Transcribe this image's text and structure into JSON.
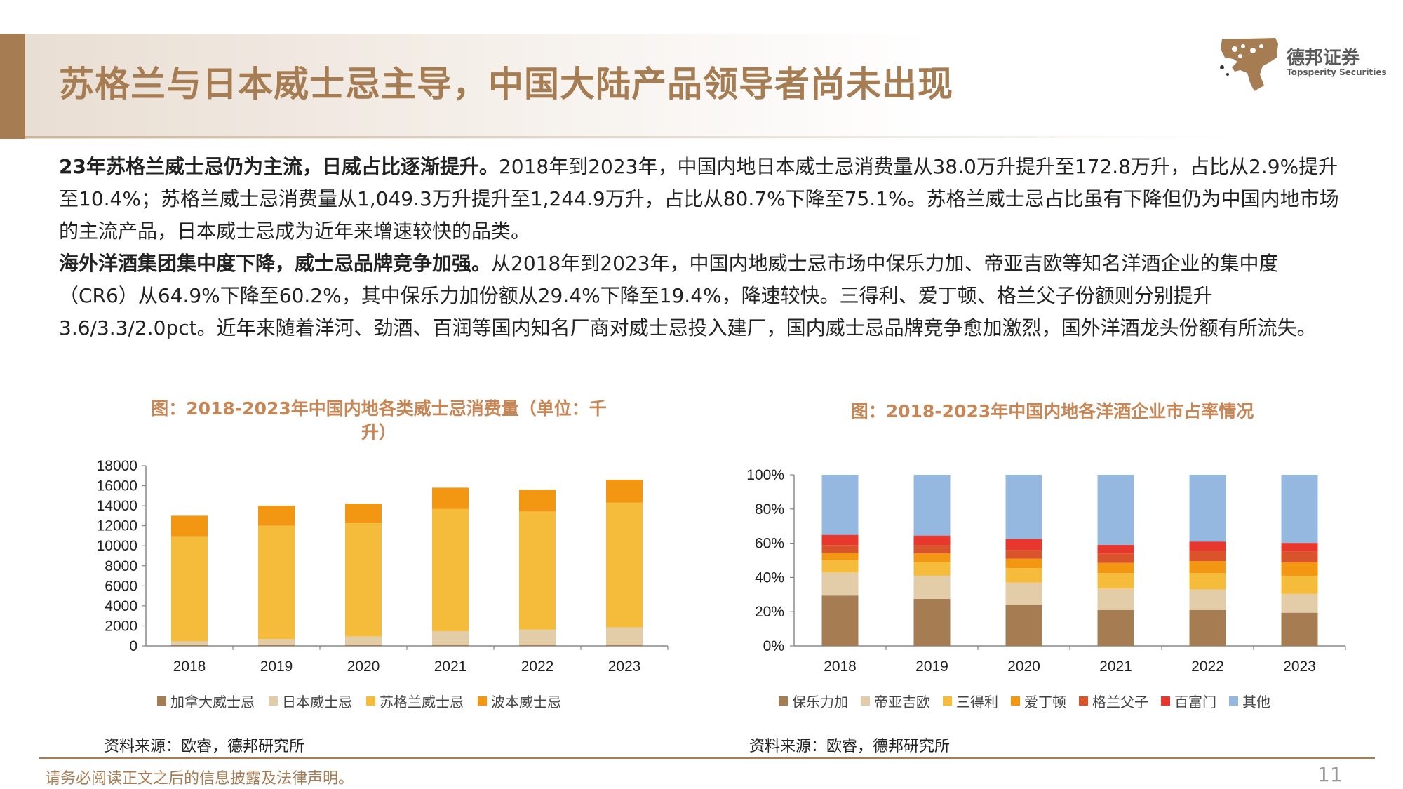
{
  "header": {
    "title": "苏格兰与日本威士忌主导，中国大陆产品领导者尚未出现",
    "logo_cn": "德邦证券",
    "logo_en": "Topsperity Securities"
  },
  "body": {
    "p1_bold": "23年苏格兰威士忌仍为主流，日威占比逐渐提升。",
    "p1_text": "2018年到2023年，中国内地日本威士忌消费量从38.0万升提升至172.8万升，占比从2.9%提升至10.4%；苏格兰威士忌消费量从1,049.3万升提升至1,244.9万升，占比从80.7%下降至75.1%。苏格兰威士忌占比虽有下降但仍为中国内地市场的主流产品，日本威士忌成为近年来增速较快的品类。",
    "p2_bold": "海外洋酒集团集中度下降，威士忌品牌竞争加强。",
    "p2_text": "从2018年到2023年，中国内地威士忌市场中保乐力加、帝亚吉欧等知名洋酒企业的集中度（CR6）从64.9%下降至60.2%，其中保乐力加份额从29.4%下降至19.4%，降速较快。三得利、爱丁顿、格兰父子份额则分别提升3.6/3.3/2.0pct。近年来随着洋河、劲酒、百润等国内知名厂商对威士忌投入建厂，国内威士忌品牌竞争愈加激烈，国外洋酒龙头份额有所流失。"
  },
  "chart_data": [
    {
      "type": "bar",
      "stacked": true,
      "title": "图：2018-2023年中国内地各类威士忌消费量（单位：千升）",
      "categories": [
        "2018",
        "2019",
        "2020",
        "2021",
        "2022",
        "2023"
      ],
      "ylim": [
        0,
        18000
      ],
      "yticks": [
        "0",
        "2000",
        "4000",
        "6000",
        "8000",
        "10000",
        "12000",
        "14000",
        "16000",
        "18000"
      ],
      "series": [
        {
          "name": "加拿大威士忌",
          "color": "#a67c52",
          "values": [
            80,
            100,
            100,
            120,
            120,
            120
          ]
        },
        {
          "name": "日本威士忌",
          "color": "#e3cda8",
          "values": [
            380,
            600,
            850,
            1350,
            1500,
            1728
          ]
        },
        {
          "name": "苏格兰威士忌",
          "color": "#f5bc3c",
          "values": [
            10493,
            11300,
            11300,
            12200,
            11800,
            12449
          ]
        },
        {
          "name": "波本威士忌",
          "color": "#f39712",
          "values": [
            2047,
            2000,
            1950,
            2130,
            2180,
            2303
          ]
        }
      ],
      "legend_position": "bottom",
      "source": "资料来源：欧睿，德邦研究所"
    },
    {
      "type": "bar",
      "stacked": true,
      "percent": true,
      "title": "图：2018-2023年中国内地各洋酒企业市占率情况",
      "categories": [
        "2018",
        "2019",
        "2020",
        "2021",
        "2022",
        "2023"
      ],
      "ylim": [
        0,
        100
      ],
      "yticks": [
        "0%",
        "20%",
        "40%",
        "60%",
        "80%",
        "100%"
      ],
      "series": [
        {
          "name": "保乐力加",
          "color": "#a67c52",
          "values": [
            29.4,
            27.5,
            24.0,
            21.0,
            21.0,
            19.4
          ]
        },
        {
          "name": "帝亚吉欧",
          "color": "#e3cda8",
          "values": [
            13.5,
            13.5,
            13.0,
            12.5,
            12.0,
            11.0
          ]
        },
        {
          "name": "三得利",
          "color": "#f5bc3c",
          "values": [
            7.0,
            8.0,
            8.5,
            9.0,
            9.5,
            10.6
          ]
        },
        {
          "name": "爱丁顿",
          "color": "#f39712",
          "values": [
            4.5,
            5.0,
            5.5,
            6.0,
            7.0,
            7.8
          ]
        },
        {
          "name": "格兰父子",
          "color": "#d9542b",
          "values": [
            4.5,
            5.0,
            5.0,
            5.5,
            6.0,
            6.5
          ]
        },
        {
          "name": "百富门",
          "color": "#e8372c",
          "values": [
            6.0,
            5.5,
            6.5,
            5.0,
            5.5,
            4.9
          ]
        },
        {
          "name": "其他",
          "color": "#94b8e0",
          "values": [
            35.1,
            35.5,
            37.5,
            41.0,
            39.0,
            39.8
          ]
        }
      ],
      "legend_position": "bottom",
      "source": "资料来源：欧睿，德邦研究所"
    }
  ],
  "footer": {
    "disclaimer": "请务必阅读正文之后的信息披露及法律声明。",
    "page_number": "11"
  }
}
